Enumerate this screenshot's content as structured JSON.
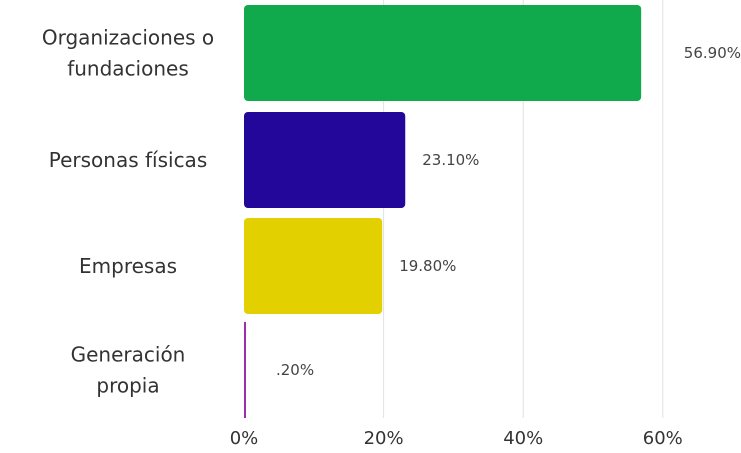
{
  "chart_data": {
    "type": "bar",
    "orientation": "horizontal",
    "categories": [
      [
        "Organizaciones o",
        "fundaciones"
      ],
      [
        "Personas físicas"
      ],
      [
        "Empresas"
      ],
      [
        "Generación",
        "propia"
      ]
    ],
    "values": [
      56.9,
      23.1,
      19.8,
      0.2
    ],
    "value_labels": [
      "56.90%",
      "23.10%",
      "19.80%",
      ".20%"
    ],
    "colors": [
      "#10a94c",
      "#22079a",
      "#e3d000",
      "#9c2fae"
    ],
    "xlim": [
      0,
      60
    ],
    "x_ticks": [
      "0%",
      "20%",
      "40%",
      "60%"
    ],
    "x_tick_values": [
      0,
      20,
      40,
      60
    ],
    "grid": true,
    "title": "",
    "xlabel": "",
    "ylabel": ""
  }
}
